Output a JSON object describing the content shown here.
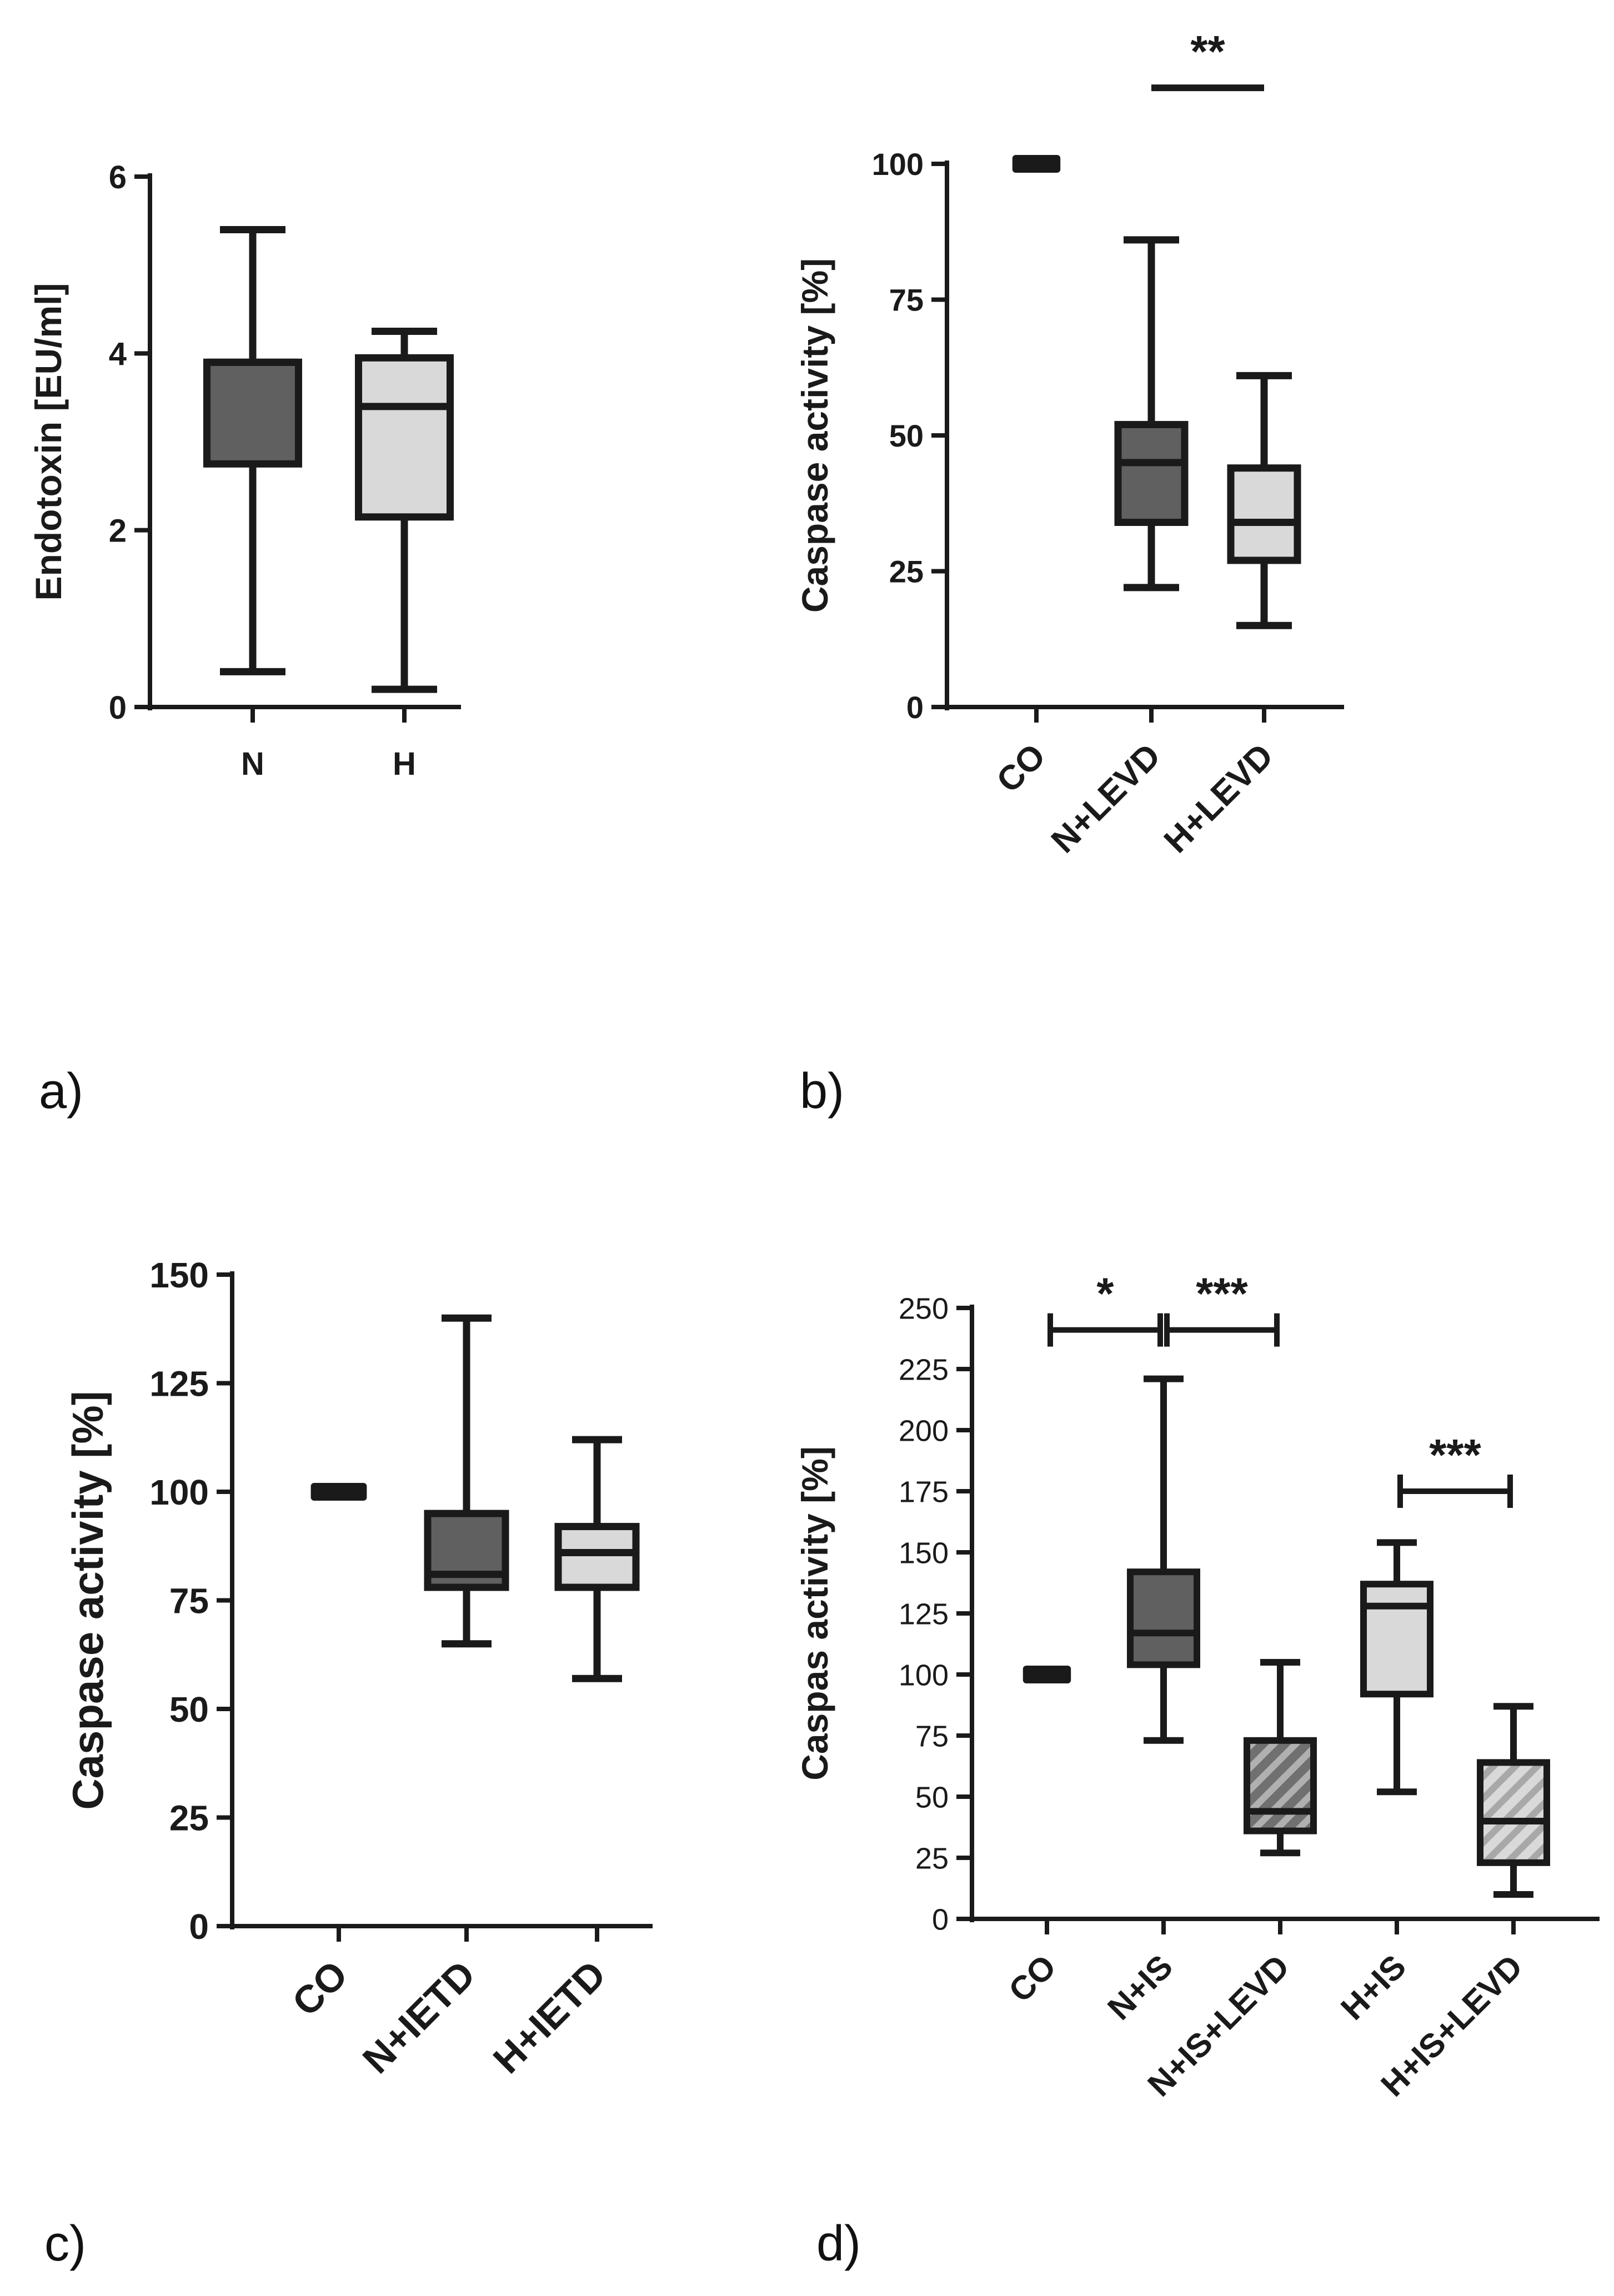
{
  "chart_data": [
    {
      "panel": "a)",
      "type": "box",
      "title": "",
      "ylabel": "Endotoxin [EU/ml]",
      "xlabel": "",
      "ylim": [
        0,
        6
      ],
      "yticks": [
        0,
        2,
        4,
        6
      ],
      "categories": [
        "N",
        "H"
      ],
      "boxes": [
        {
          "label": "N",
          "min": 0.4,
          "q1": 2.75,
          "median": 3.9,
          "q3": 3.9,
          "max": 5.4,
          "fill": "#606060",
          "hatch": false
        },
        {
          "label": "H",
          "min": 0.2,
          "q1": 2.15,
          "median": 3.4,
          "q3": 3.95,
          "max": 4.25,
          "fill": "#d9d9d9",
          "hatch": false
        }
      ],
      "annotations": []
    },
    {
      "panel": "b)",
      "type": "box",
      "title": "",
      "ylabel": "Caspase activity [%]",
      "xlabel": "",
      "ylim": [
        0,
        100
      ],
      "yticks": [
        0,
        25,
        50,
        75,
        100
      ],
      "categories": [
        "CO",
        "N+LEVD",
        "H+LEVD"
      ],
      "boxes": [
        {
          "label": "CO",
          "min": 100,
          "q1": 100,
          "median": 100,
          "q3": 100,
          "max": 100,
          "fill": "#1a1a1a",
          "hatch": false
        },
        {
          "label": "N+LEVD",
          "min": 22,
          "q1": 34,
          "median": 45,
          "q3": 52,
          "max": 86,
          "fill": "#606060",
          "hatch": false
        },
        {
          "label": "H+LEVD",
          "min": 15,
          "q1": 27,
          "median": 34,
          "q3": 44,
          "max": 61,
          "fill": "#d9d9d9",
          "hatch": false
        }
      ],
      "annotations": [
        {
          "text": "**",
          "from": "N+LEVD",
          "to": "H+LEVD",
          "y": 114,
          "ticks": false
        }
      ]
    },
    {
      "panel": "c)",
      "type": "box",
      "title": "",
      "ylabel": "Caspase activity [%]",
      "xlabel": "",
      "ylim": [
        0,
        150
      ],
      "yticks": [
        0,
        25,
        50,
        75,
        100,
        125,
        150
      ],
      "categories": [
        "CO",
        "N+IETD",
        "H+IETD"
      ],
      "boxes": [
        {
          "label": "CO",
          "min": 100,
          "q1": 100,
          "median": 100,
          "q3": 100,
          "max": 100,
          "fill": "#1a1a1a",
          "hatch": false
        },
        {
          "label": "N+IETD",
          "min": 65,
          "q1": 78,
          "median": 81,
          "q3": 95,
          "max": 140,
          "fill": "#606060",
          "hatch": false
        },
        {
          "label": "H+IETD",
          "min": 57,
          "q1": 78,
          "median": 86,
          "q3": 92,
          "max": 112,
          "fill": "#d9d9d9",
          "hatch": false
        }
      ],
      "annotations": []
    },
    {
      "panel": "d)",
      "type": "box",
      "title": "",
      "ylabel": "Caspas activity [%]",
      "xlabel": "",
      "ylim": [
        0,
        250
      ],
      "yticks": [
        0,
        25,
        50,
        75,
        100,
        125,
        150,
        175,
        200,
        225,
        250
      ],
      "categories": [
        "CO",
        "N+IS",
        "N+IS+LEVD",
        "H+IS",
        "H+IS+LEVD"
      ],
      "boxes": [
        {
          "label": "CO",
          "min": 100,
          "q1": 100,
          "median": 100,
          "q3": 100,
          "max": 100,
          "fill": "#1a1a1a",
          "hatch": false
        },
        {
          "label": "N+IS",
          "min": 73,
          "q1": 104,
          "median": 117,
          "q3": 142,
          "max": 221,
          "fill": "#606060",
          "hatch": false
        },
        {
          "label": "N+IS+LEVD",
          "min": 27,
          "q1": 36,
          "median": 44,
          "q3": 73,
          "max": 105,
          "fill": "#606060",
          "hatch": true
        },
        {
          "label": "H+IS",
          "min": 52,
          "q1": 92,
          "median": 128,
          "q3": 137,
          "max": 154,
          "fill": "#d9d9d9",
          "hatch": false
        },
        {
          "label": "H+IS+LEVD",
          "min": 10,
          "q1": 23,
          "median": 40,
          "q3": 64,
          "max": 87,
          "fill": "#d9d9d9",
          "hatch": true
        }
      ],
      "annotations": [
        {
          "text": "*",
          "from": "CO",
          "to": "N+IS",
          "y": 241,
          "ticks": true
        },
        {
          "text": "***",
          "from": "N+IS",
          "to": "N+IS+LEVD",
          "y": 241,
          "ticks": true
        },
        {
          "text": "***",
          "from": "H+IS",
          "to": "H+IS+LEVD",
          "y": 175,
          "ticks": true
        }
      ]
    }
  ]
}
